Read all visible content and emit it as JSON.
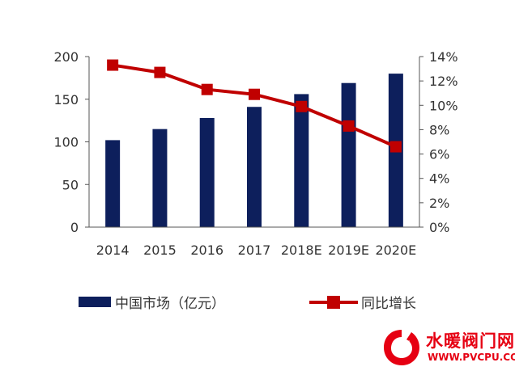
{
  "chart_data": {
    "type": "bar+line",
    "categories": [
      "2014",
      "2015",
      "2016",
      "2017",
      "2018E",
      "2019E",
      "2020E"
    ],
    "series": [
      {
        "name": "中国市场（亿元）",
        "type": "bar",
        "axis": "left",
        "values": [
          102,
          115,
          128,
          141,
          156,
          169,
          180
        ],
        "color": "#0d1f5c"
      },
      {
        "name": "同比增长",
        "type": "line",
        "axis": "right",
        "values": [
          13.3,
          12.7,
          11.3,
          10.9,
          9.9,
          8.3,
          6.6
        ],
        "color": "#c00000"
      }
    ],
    "y_left": {
      "range": [
        0,
        200
      ],
      "ticks": [
        "0",
        "50",
        "100",
        "150",
        "200"
      ]
    },
    "y_right": {
      "range": [
        0,
        14
      ],
      "ticks": [
        "0%",
        "2%",
        "4%",
        "6%",
        "8%",
        "10%",
        "12%",
        "14%"
      ]
    },
    "grid": false,
    "legend_position": "bottom"
  },
  "watermark": {
    "text_cn": "水暖阀门网",
    "url": "WWW.PVCPU.COM",
    "logo_letter": "V",
    "color": "#e60012"
  }
}
